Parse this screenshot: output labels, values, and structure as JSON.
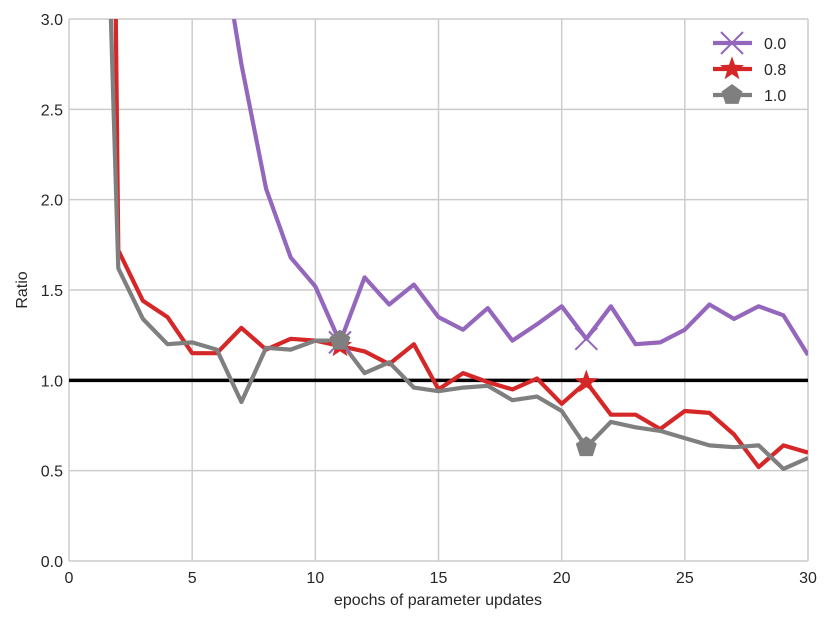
{
  "chart_data": {
    "type": "line",
    "title": "",
    "xlabel": "epochs of parameter updates",
    "ylabel": "Ratio",
    "xlim": [
      0,
      30
    ],
    "ylim": [
      0.0,
      3.0
    ],
    "xticks": [
      0,
      5,
      10,
      15,
      20,
      25,
      30
    ],
    "yticks": [
      0.0,
      0.5,
      1.0,
      1.5,
      2.0,
      2.5,
      3.0
    ],
    "xtick_labels": [
      "0",
      "5",
      "10",
      "15",
      "20",
      "25",
      "30"
    ],
    "ytick_labels": [
      "0.0",
      "0.5",
      "1.0",
      "1.5",
      "2.0",
      "2.5",
      "3.0"
    ],
    "grid": true,
    "legend_position": "top-right",
    "reference_line": {
      "y": 1.0,
      "color": "#000000"
    },
    "series": [
      {
        "name": "0.0",
        "color": "#9467bd",
        "marker": "x",
        "marker_at": [
          11,
          21
        ],
        "x": [
          6.7,
          7,
          8,
          9,
          10,
          11,
          12,
          13,
          14,
          15,
          16,
          17,
          18,
          19,
          20,
          21,
          22,
          23,
          24,
          25,
          26,
          27,
          28,
          29,
          30
        ],
        "values": [
          3.0,
          2.75,
          2.06,
          1.68,
          1.52,
          1.21,
          1.57,
          1.42,
          1.53,
          1.35,
          1.28,
          1.4,
          1.22,
          1.31,
          1.41,
          1.23,
          1.41,
          1.2,
          1.21,
          1.28,
          1.42,
          1.34,
          1.41,
          1.36,
          1.14
        ]
      },
      {
        "name": "0.8",
        "color": "#d62728",
        "marker": "star",
        "marker_at": [
          11,
          21
        ],
        "x": [
          1.9,
          2,
          3,
          4,
          5,
          6,
          7,
          8,
          9,
          10,
          11,
          12,
          13,
          14,
          15,
          16,
          17,
          18,
          19,
          20,
          21,
          22,
          23,
          24,
          25,
          26,
          27,
          28,
          29,
          30
        ],
        "values": [
          3.0,
          1.72,
          1.44,
          1.35,
          1.15,
          1.15,
          1.29,
          1.17,
          1.23,
          1.22,
          1.19,
          1.16,
          1.09,
          1.2,
          0.95,
          1.04,
          0.99,
          0.95,
          1.01,
          0.87,
          0.99,
          0.81,
          0.81,
          0.73,
          0.83,
          0.82,
          0.7,
          0.52,
          0.64,
          0.6
        ]
      },
      {
        "name": "1.0",
        "color": "#7f7f7f",
        "marker": "pentagon",
        "marker_at": [
          11,
          21
        ],
        "x": [
          1.7,
          2,
          3,
          4,
          5,
          6,
          7,
          8,
          9,
          10,
          11,
          12,
          13,
          14,
          15,
          16,
          17,
          18,
          19,
          20,
          21,
          22,
          23,
          24,
          25,
          26,
          27,
          28,
          29,
          30
        ],
        "values": [
          3.0,
          1.62,
          1.34,
          1.2,
          1.21,
          1.17,
          0.88,
          1.18,
          1.17,
          1.22,
          1.22,
          1.04,
          1.1,
          0.96,
          0.94,
          0.96,
          0.97,
          0.89,
          0.91,
          0.83,
          0.63,
          0.77,
          0.74,
          0.72,
          0.68,
          0.64,
          0.63,
          0.64,
          0.51,
          0.57
        ]
      }
    ]
  }
}
